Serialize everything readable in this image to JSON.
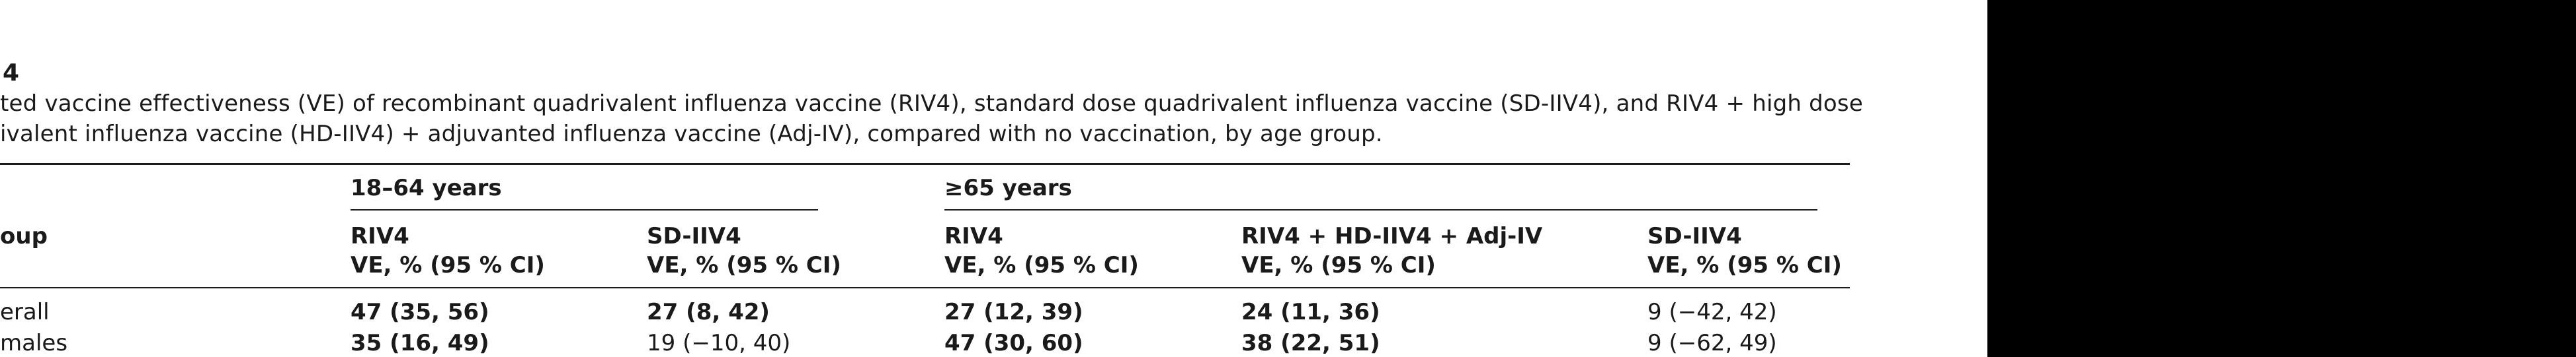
{
  "table_label": "4",
  "caption": {
    "line1": "ted vaccine effectiveness (VE) of recombinant quadrivalent influenza vaccine (RIV4), standard dose quadrivalent influenza vaccine (SD-IIV4), and RIV4 + high dose",
    "line2": "ivalent influenza vaccine (HD-IIV4) + adjuvanted influenza vaccine (Adj-IV), compared with no vaccination, by age group."
  },
  "header": {
    "group_label": "oup",
    "age_groups": [
      {
        "label": "18–64 years"
      },
      {
        "label": "≥65 years"
      }
    ],
    "columns": [
      {
        "name": "RIV4",
        "sub": "VE, % (95 % CI)"
      },
      {
        "name": "SD-IIV4",
        "sub": "VE, % (95 % CI)"
      },
      {
        "name": "RIV4",
        "sub": "VE, % (95 % CI)"
      },
      {
        "name": "RIV4 + HD-IIV4 + Adj-IV",
        "sub": "VE, % (95 % CI)"
      },
      {
        "name": "SD-IIV4",
        "sub": "VE, % (95 % CI)"
      }
    ]
  },
  "rows": [
    {
      "label": "erall",
      "cells": [
        {
          "text": "47 (35, 56)",
          "bold": true
        },
        {
          "text": "27 (8, 42)",
          "bold": true
        },
        {
          "text": "27 (12, 39)",
          "bold": true
        },
        {
          "text": "24 (11, 36)",
          "bold": true
        },
        {
          "text": "9 (−42, 42)",
          "bold": false
        }
      ]
    },
    {
      "label": "males",
      "cells": [
        {
          "text": "35 (16, 49)",
          "bold": true
        },
        {
          "text": "19 (−10, 40)",
          "bold": false
        },
        {
          "text": "47 (30, 60)",
          "bold": true
        },
        {
          "text": "38 (22, 51)",
          "bold": true
        },
        {
          "text": "9 (−62, 49)",
          "bold": false
        }
      ]
    }
  ]
}
